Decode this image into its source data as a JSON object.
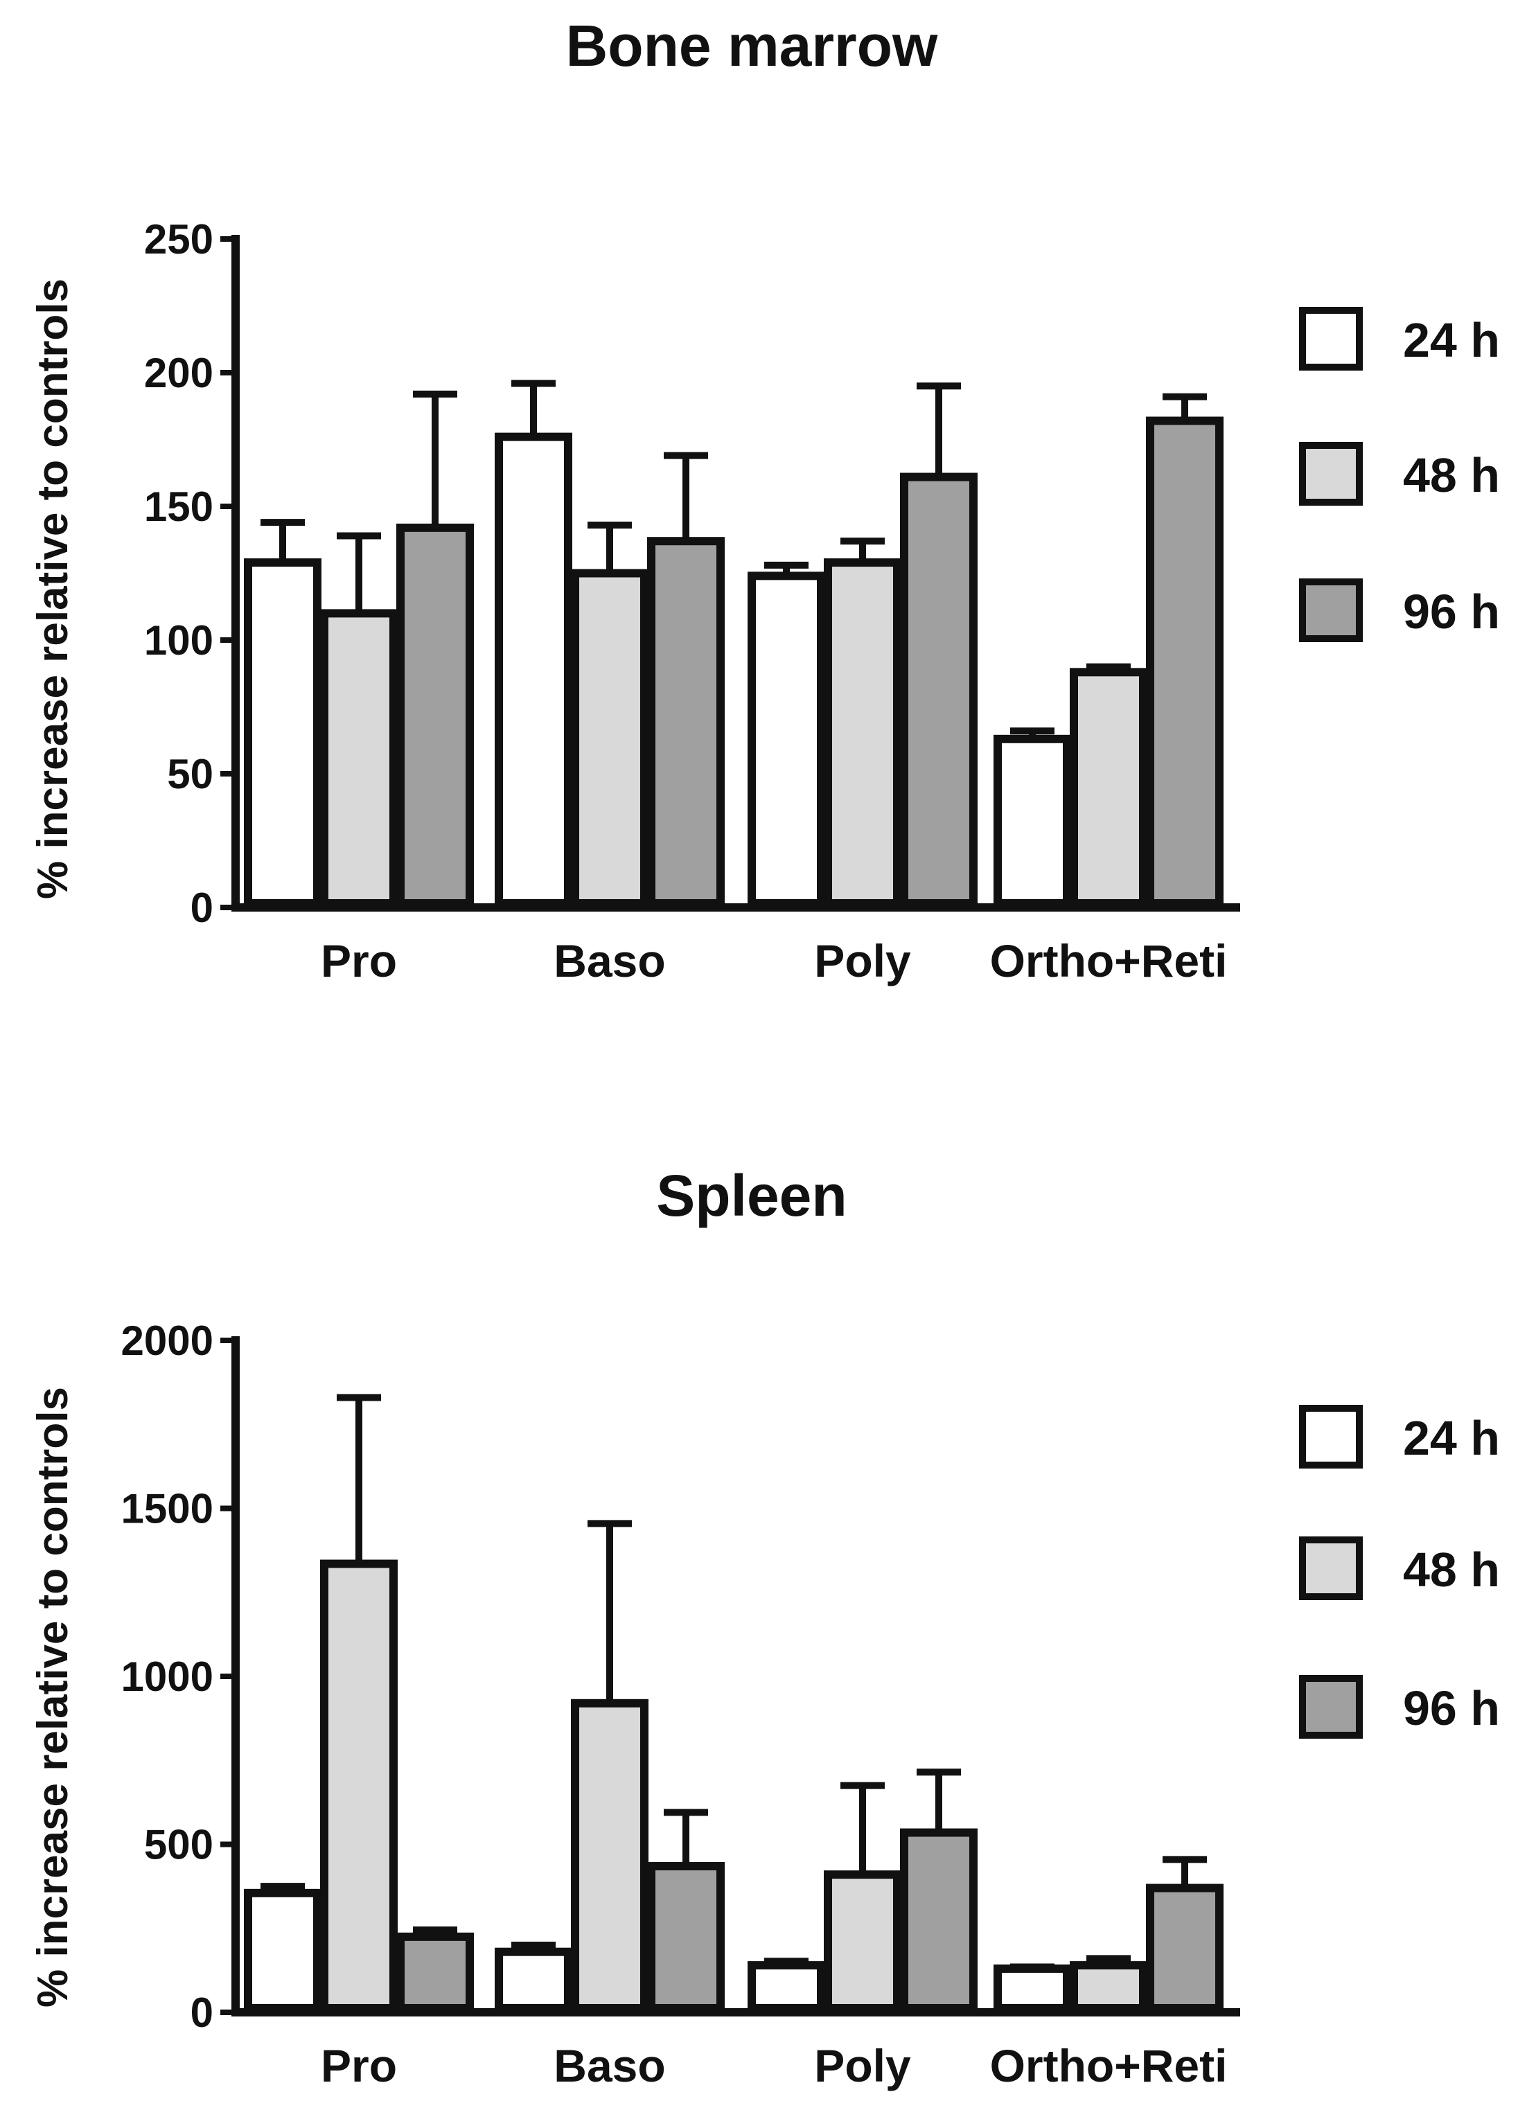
{
  "chart_data": [
    {
      "type": "bar",
      "title": "Bone marrow",
      "ylabel": "% increase relative to controls",
      "xlabel": "",
      "categories": [
        "Pro",
        "Baso",
        "Poly",
        "Ortho+Reti"
      ],
      "ylim": [
        0,
        250
      ],
      "yticks": [
        0,
        50,
        100,
        150,
        200,
        250
      ],
      "ytick_labels": [
        "0",
        "50",
        "100",
        "150",
        "200",
        "250"
      ],
      "legend_position": "right",
      "series": [
        {
          "name": "24 h",
          "color": "#ffffff",
          "values": [
            129,
            176,
            124,
            63
          ],
          "errors": [
            15,
            20,
            4,
            3
          ]
        },
        {
          "name": "48 h",
          "color": "#d9d9d9",
          "values": [
            110,
            125,
            129,
            88
          ],
          "errors": [
            29,
            18,
            8,
            2
          ]
        },
        {
          "name": "96 h",
          "color": "#a0a0a0",
          "values": [
            142,
            137,
            161,
            182
          ],
          "errors": [
            50,
            32,
            34,
            9
          ]
        }
      ]
    },
    {
      "type": "bar",
      "title": "Spleen",
      "ylabel": "% increase relative to controls",
      "xlabel": "",
      "categories": [
        "Pro",
        "Baso",
        "Poly",
        "Ortho+Reti"
      ],
      "ylim": [
        0,
        2000
      ],
      "yticks": [
        0,
        500,
        1000,
        1500,
        2000
      ],
      "ytick_labels": [
        "0",
        "500",
        "1000",
        "1500",
        "2000"
      ],
      "legend_position": "right",
      "series": [
        {
          "name": "24 h",
          "color": "#ffffff",
          "values": [
            355,
            180,
            140,
            130
          ],
          "errors": [
            20,
            20,
            12,
            5
          ]
        },
        {
          "name": "48 h",
          "color": "#d9d9d9",
          "values": [
            1335,
            920,
            410,
            140
          ],
          "errors": [
            495,
            535,
            265,
            20
          ]
        },
        {
          "name": "96 h",
          "color": "#a0a0a0",
          "values": [
            225,
            435,
            535,
            370
          ],
          "errors": [
            20,
            160,
            180,
            85
          ]
        }
      ]
    }
  ]
}
